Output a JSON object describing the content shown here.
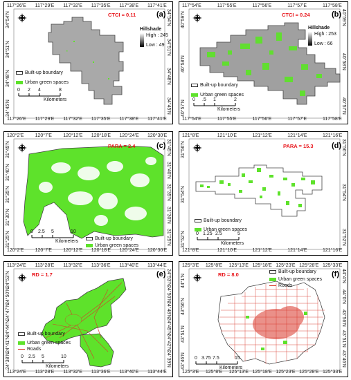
{
  "panels": [
    {
      "letter": "(a)",
      "metric": "CTCI = 0.11",
      "top_ticks": [
        "117°26'E",
        "117°29'E",
        "117°32'E",
        "117°35'E",
        "117°38'E",
        "117°41'E"
      ],
      "bottom_ticks": [
        "117°26'E",
        "117°29'E",
        "117°32'E",
        "117°35'E",
        "117°38'E",
        "117°41'E"
      ],
      "left_ticks": [
        "34°54'N",
        "34°51'N",
        "34°48'N",
        "34°45'N"
      ],
      "right_ticks": [
        "34°54'N",
        "34°51'N",
        "34°48'N",
        "34°45'N"
      ],
      "legend": [
        {
          "label": "Built-up boundary",
          "type": "box"
        },
        {
          "label": "Urban green spaces",
          "type": "green"
        }
      ],
      "hillshade": {
        "title": "Hillshade",
        "high": "High : 245",
        "low": "Low : 49"
      },
      "scale": {
        "ticks": [
          "0",
          "2",
          "4",
          "8"
        ],
        "unit": "Kilometers"
      }
    },
    {
      "letter": "(b)",
      "metric": "CTCI = 0.24",
      "top_ticks": [
        "117°54'E",
        "117°55'E",
        "117°56'E",
        "117°57'E",
        "117°58'E"
      ],
      "bottom_ticks": [
        "117°54'E",
        "117°55'E",
        "117°56'E",
        "117°57'E",
        "117°58'E"
      ],
      "left_ticks": [
        "40°59'N",
        "40°58'N",
        "40°57'N"
      ],
      "right_ticks": [
        "40°59'N",
        "40°58'N",
        "40°57'N"
      ],
      "legend": [
        {
          "label": "Built-up boundary",
          "type": "box"
        },
        {
          "label": "Urban green spaces",
          "type": "green"
        }
      ],
      "hillshade": {
        "title": "Hillshade",
        "high": "High : 253",
        "low": "Low : 66"
      },
      "scale": {
        "ticks": [
          "0",
          ".5",
          "1",
          "2"
        ],
        "unit": "Kilometers"
      }
    },
    {
      "letter": "(c)",
      "metric": "PARA = 2.4",
      "top_ticks": [
        "120°2'E",
        "120°7'E",
        "120°12'E",
        "120°18'E",
        "120°24'E",
        "120°30'E"
      ],
      "bottom_ticks": [
        "120°2'E",
        "120°7'E",
        "120°12'E",
        "120°18'E",
        "120°24'E",
        "120°30'E"
      ],
      "left_ticks": [
        "31°45'N",
        "31°40'N",
        "31°35'N",
        "31°30'N",
        "31°25'N"
      ],
      "right_ticks": [
        "31°45'N",
        "31°40'N",
        "31°35'N",
        "31°30'N",
        "31°25'N"
      ],
      "legend": [
        {
          "label": "Built-up boundary",
          "type": "box"
        },
        {
          "label": "Urban green spaces",
          "type": "green"
        }
      ],
      "scale": {
        "ticks": [
          "0",
          "2.5",
          "5",
          "10"
        ],
        "unit": "Kilometers"
      }
    },
    {
      "letter": "(d)",
      "metric": "PARA = 15.3",
      "top_ticks": [
        "121°8'E",
        "121°10'E",
        "121°12'E",
        "121°14'E",
        "121°16'E"
      ],
      "bottom_ticks": [
        "121°8'E",
        "121°10'E",
        "121°12'E",
        "121°14'E",
        "121°16'E"
      ],
      "left_ticks": [
        "31°56'N",
        "31°54'N",
        "31°52'N"
      ],
      "right_ticks": [
        "31°56'N",
        "31°54'N",
        "31°52'N"
      ],
      "legend": [
        {
          "label": "Built-up boundary",
          "type": "box"
        },
        {
          "label": "Urban green spaces",
          "type": "green"
        }
      ],
      "scale": {
        "ticks": [
          "0",
          "1.25",
          "2.5",
          "5"
        ],
        "unit": "Kilometers"
      }
    },
    {
      "letter": "(e)",
      "metric": "RD = 1.7",
      "top_ticks": [
        "113°24'E",
        "113°28'E",
        "113°32'E",
        "113°36'E",
        "113°40'E",
        "113°44'E"
      ],
      "bottom_ticks": [
        "113°24'E",
        "113°28'E",
        "113°32'E",
        "113°36'E",
        "113°40'E",
        "113°44'E"
      ],
      "left_ticks": [
        "24°53'N",
        "24°50'N",
        "24°47'N",
        "24°44'N",
        "24°41'N",
        "24°38'N"
      ],
      "right_ticks": [
        "24°53'N",
        "24°50'N",
        "24°48'N",
        "24°45'N",
        "24°42'N",
        "24°39'N"
      ],
      "legend": [
        {
          "label": "Built-up boundary",
          "type": "box"
        },
        {
          "label": "Urban green spaces",
          "type": "green"
        },
        {
          "label": "Roads",
          "type": "road"
        }
      ],
      "scale": {
        "ticks": [
          "0",
          "2.5",
          "5",
          "10"
        ],
        "unit": "Kilometers"
      }
    },
    {
      "letter": "(f)",
      "metric": "RD = 8.0",
      "top_ticks": [
        "125°3'E",
        "125°8'E",
        "125°13'E",
        "125°18'E",
        "125°23'E",
        "125°28'E",
        "125°33'E"
      ],
      "bottom_ticks": [
        "125°3'E",
        "125°8'E",
        "125°13'E",
        "125°18'E",
        "125°23'E",
        "125°28'E",
        "125°33'E"
      ],
      "left_ticks": [
        "44°1'N",
        "43°56'N",
        "43°51'N",
        "43°46'N"
      ],
      "right_ticks": [
        "44°4'N",
        "44°0'N",
        "43°56'N",
        "43°51'N",
        "43°46'N"
      ],
      "legend": [
        {
          "label": "Built-up boundary",
          "type": "box"
        },
        {
          "label": "Urban green spaces",
          "type": "green"
        },
        {
          "label": "Roads",
          "type": "road"
        }
      ],
      "scale": {
        "ticks": [
          "0",
          "3.75",
          "7.5",
          "15"
        ],
        "unit": "Kilometers"
      }
    }
  ],
  "colors": {
    "green": "#5ee22b",
    "road": "#d9372a",
    "hillshade": "#a9a9a9",
    "boundary": "#555555"
  }
}
